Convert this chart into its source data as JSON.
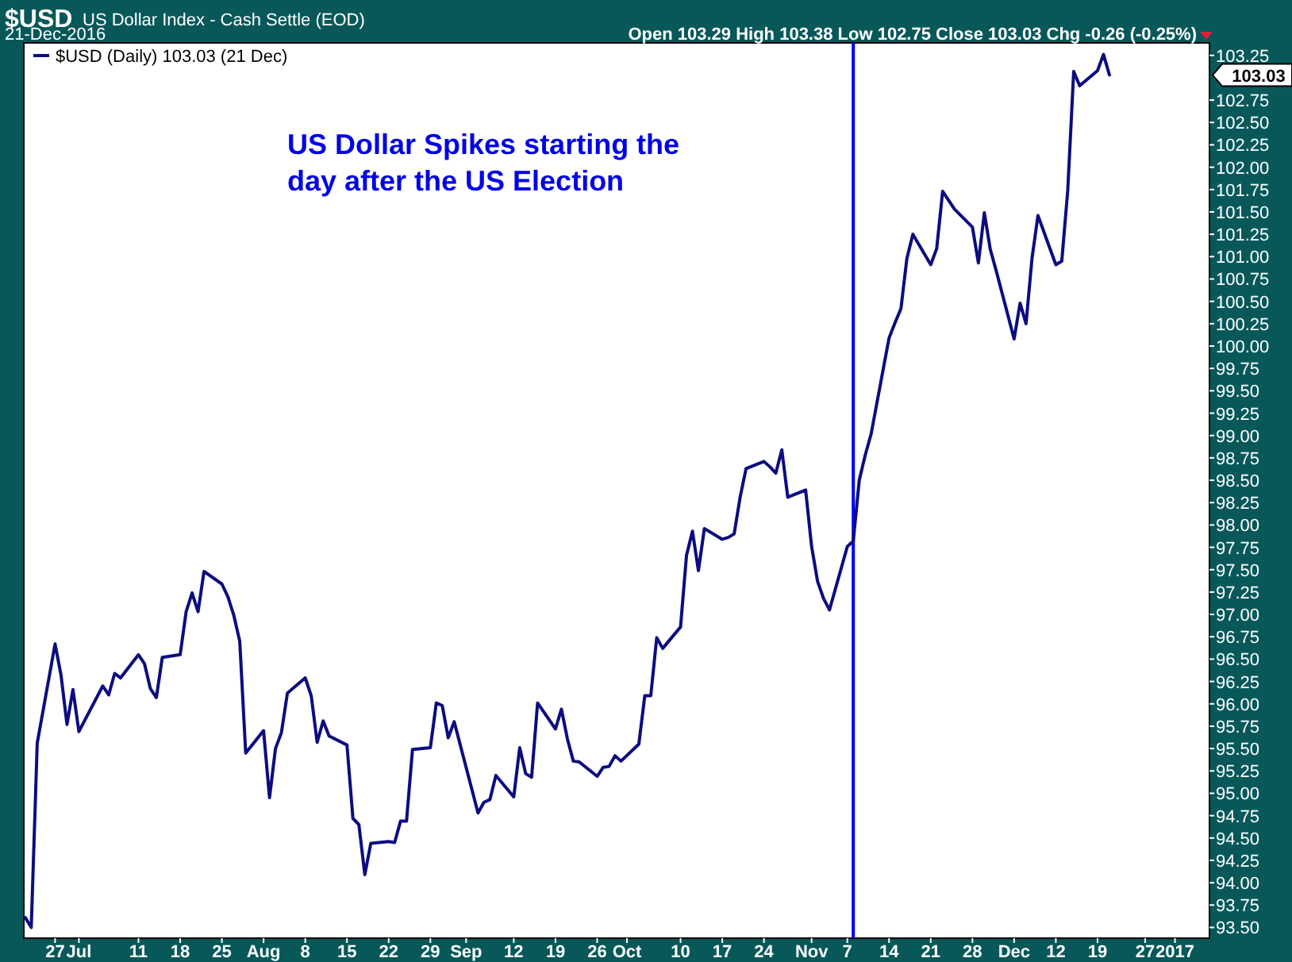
{
  "chart_data": {
    "type": "line",
    "title": "$USD",
    "subtitle": "US Dollar Index - Cash Settle (EOD)",
    "annotations": [
      "21-Dec-2016",
      "Open 103.29 High 103.38 Low 102.75 Close 103.03 Chg -0.26 (-0.25%)",
      "US Dollar Spikes starting the\nday after the US Election",
      "103.03"
    ],
    "x": [
      "2016-06-22",
      "2016-06-23",
      "2016-06-24",
      "2016-06-27",
      "2016-06-28",
      "2016-06-29",
      "2016-06-30",
      "2016-07-01",
      "2016-07-05",
      "2016-07-06",
      "2016-07-07",
      "2016-07-08",
      "2016-07-11",
      "2016-07-12",
      "2016-07-13",
      "2016-07-14",
      "2016-07-15",
      "2016-07-18",
      "2016-07-19",
      "2016-07-20",
      "2016-07-21",
      "2016-07-22",
      "2016-07-25",
      "2016-07-26",
      "2016-07-27",
      "2016-07-28",
      "2016-07-29",
      "2016-08-01",
      "2016-08-02",
      "2016-08-03",
      "2016-08-04",
      "2016-08-05",
      "2016-08-08",
      "2016-08-09",
      "2016-08-10",
      "2016-08-11",
      "2016-08-12",
      "2016-08-15",
      "2016-08-16",
      "2016-08-17",
      "2016-08-18",
      "2016-08-19",
      "2016-08-22",
      "2016-08-23",
      "2016-08-24",
      "2016-08-25",
      "2016-08-26",
      "2016-08-29",
      "2016-08-30",
      "2016-08-31",
      "2016-09-01",
      "2016-09-02",
      "2016-09-06",
      "2016-09-07",
      "2016-09-08",
      "2016-09-09",
      "2016-09-12",
      "2016-09-13",
      "2016-09-14",
      "2016-09-15",
      "2016-09-16",
      "2016-09-19",
      "2016-09-20",
      "2016-09-21",
      "2016-09-22",
      "2016-09-23",
      "2016-09-26",
      "2016-09-27",
      "2016-09-28",
      "2016-09-29",
      "2016-09-30",
      "2016-10-03",
      "2016-10-04",
      "2016-10-05",
      "2016-10-06",
      "2016-10-07",
      "2016-10-10",
      "2016-10-11",
      "2016-10-12",
      "2016-10-13",
      "2016-10-14",
      "2016-10-17",
      "2016-10-18",
      "2016-10-19",
      "2016-10-20",
      "2016-10-21",
      "2016-10-24",
      "2016-10-25",
      "2016-10-26",
      "2016-10-27",
      "2016-10-28",
      "2016-10-31",
      "2016-11-01",
      "2016-11-02",
      "2016-11-03",
      "2016-11-04",
      "2016-11-07",
      "2016-11-08",
      "2016-11-09",
      "2016-11-10",
      "2016-11-11",
      "2016-11-14",
      "2016-11-15",
      "2016-11-16",
      "2016-11-17",
      "2016-11-18",
      "2016-11-21",
      "2016-11-22",
      "2016-11-23",
      "2016-11-25",
      "2016-11-28",
      "2016-11-29",
      "2016-11-30",
      "2016-12-01",
      "2016-12-02",
      "2016-12-05",
      "2016-12-06",
      "2016-12-07",
      "2016-12-08",
      "2016-12-09",
      "2016-12-12",
      "2016-12-13",
      "2016-12-14",
      "2016-12-15",
      "2016-12-16",
      "2016-12-19",
      "2016-12-20",
      "2016-12-21"
    ],
    "series": [
      {
        "name": "$USD (Daily) 103.03 (21 Dec)",
        "color": "#0c0c80",
        "values": [
          93.61,
          93.5,
          95.56,
          96.67,
          96.32,
          95.77,
          96.16,
          95.69,
          96.2,
          96.1,
          96.34,
          96.29,
          96.55,
          96.45,
          96.17,
          96.07,
          96.52,
          96.55,
          97.03,
          97.24,
          97.03,
          97.48,
          97.34,
          97.2,
          96.99,
          96.7,
          95.45,
          95.7,
          94.95,
          95.5,
          95.68,
          96.12,
          96.29,
          96.09,
          95.57,
          95.81,
          95.64,
          95.54,
          94.72,
          94.65,
          94.09,
          94.44,
          94.46,
          94.45,
          94.69,
          94.69,
          95.49,
          95.51,
          96.01,
          95.98,
          95.62,
          95.8,
          94.78,
          94.9,
          94.93,
          95.2,
          94.96,
          95.51,
          95.22,
          95.18,
          96.01,
          95.72,
          95.94,
          95.61,
          95.36,
          95.35,
          95.19,
          95.29,
          95.3,
          95.42,
          95.36,
          95.55,
          96.09,
          96.09,
          96.74,
          96.62,
          96.86,
          97.66,
          97.93,
          97.49,
          97.96,
          97.84,
          97.86,
          97.9,
          98.31,
          98.63,
          98.71,
          98.65,
          98.58,
          98.84,
          98.31,
          98.39,
          97.76,
          97.37,
          97.18,
          97.05,
          97.76,
          97.82,
          98.5,
          98.78,
          99.02,
          100.09,
          100.26,
          100.42,
          100.98,
          101.25,
          100.91,
          101.09,
          101.73,
          101.53,
          101.33,
          100.93,
          101.49,
          101.08,
          100.84,
          100.08,
          100.48,
          100.25,
          100.98,
          101.46,
          100.91,
          100.95,
          101.74,
          103.07,
          102.91,
          103.08,
          103.26,
          103.03
        ]
      }
    ],
    "xlim": [
      "2016-06-21T18:00",
      "2017-01-06T19:00"
    ],
    "xticks": [
      {
        "value": "2016-06-27",
        "label": "27"
      },
      {
        "value": "2016-07-01",
        "label": "Jul"
      },
      {
        "value": "2016-07-11",
        "label": "11"
      },
      {
        "value": "2016-07-18",
        "label": "18"
      },
      {
        "value": "2016-07-25",
        "label": "25"
      },
      {
        "value": "2016-08-01",
        "label": "Aug"
      },
      {
        "value": "2016-08-08",
        "label": "8"
      },
      {
        "value": "2016-08-15",
        "label": "15"
      },
      {
        "value": "2016-08-22",
        "label": "22"
      },
      {
        "value": "2016-08-29",
        "label": "29"
      },
      {
        "value": "2016-09-04",
        "label": "Sep"
      },
      {
        "value": "2016-09-12",
        "label": "12"
      },
      {
        "value": "2016-09-19",
        "label": "19"
      },
      {
        "value": "2016-09-26",
        "label": "26"
      },
      {
        "value": "2016-10-01",
        "label": "Oct"
      },
      {
        "value": "2016-10-10",
        "label": "10"
      },
      {
        "value": "2016-10-17",
        "label": "17"
      },
      {
        "value": "2016-10-24",
        "label": "24"
      },
      {
        "value": "2016-11-01",
        "label": "Nov"
      },
      {
        "value": "2016-11-07",
        "label": "7"
      },
      {
        "value": "2016-11-14",
        "label": "14"
      },
      {
        "value": "2016-11-21",
        "label": "21"
      },
      {
        "value": "2016-11-28",
        "label": "28"
      },
      {
        "value": "2016-12-05",
        "label": "Dec"
      },
      {
        "value": "2016-12-12",
        "label": "12"
      },
      {
        "value": "2016-12-19",
        "label": "19"
      },
      {
        "value": "2016-12-27",
        "label": "27"
      },
      {
        "value": "2017-01-01",
        "label": "2017"
      }
    ],
    "ylim": [
      93.38,
      103.39
    ],
    "yticks": [
      {
        "value": 93.5,
        "label": "93.50"
      },
      {
        "value": 93.75,
        "label": "93.75"
      },
      {
        "value": 94,
        "label": "94.00"
      },
      {
        "value": 94.25,
        "label": "94.25"
      },
      {
        "value": 94.5,
        "label": "94.50"
      },
      {
        "value": 94.75,
        "label": "94.75"
      },
      {
        "value": 95,
        "label": "95.00"
      },
      {
        "value": 95.25,
        "label": "95.25"
      },
      {
        "value": 95.5,
        "label": "95.50"
      },
      {
        "value": 95.75,
        "label": "95.75"
      },
      {
        "value": 96,
        "label": "96.00"
      },
      {
        "value": 96.25,
        "label": "96.25"
      },
      {
        "value": 96.5,
        "label": "96.50"
      },
      {
        "value": 96.75,
        "label": "96.75"
      },
      {
        "value": 97,
        "label": "97.00"
      },
      {
        "value": 97.25,
        "label": "97.25"
      },
      {
        "value": 97.5,
        "label": "97.50"
      },
      {
        "value": 97.75,
        "label": "97.75"
      },
      {
        "value": 98,
        "label": "98.00"
      },
      {
        "value": 98.25,
        "label": "98.25"
      },
      {
        "value": 98.5,
        "label": "98.50"
      },
      {
        "value": 98.75,
        "label": "98.75"
      },
      {
        "value": 99,
        "label": "99.00"
      },
      {
        "value": 99.25,
        "label": "99.25"
      },
      {
        "value": 99.5,
        "label": "99.50"
      },
      {
        "value": 99.75,
        "label": "99.75"
      },
      {
        "value": 100,
        "label": "100.00"
      },
      {
        "value": 100.25,
        "label": "100.25"
      },
      {
        "value": 100.5,
        "label": "100.50"
      },
      {
        "value": 100.75,
        "label": "100.75"
      },
      {
        "value": 101,
        "label": "101.00"
      },
      {
        "value": 101.25,
        "label": "101.25"
      },
      {
        "value": 101.5,
        "label": "101.50"
      },
      {
        "value": 101.75,
        "label": "101.75"
      },
      {
        "value": 102,
        "label": "102.00"
      },
      {
        "value": 102.25,
        "label": "102.25"
      },
      {
        "value": 102.5,
        "label": "102.50"
      },
      {
        "value": 102.75,
        "label": "102.75"
      },
      {
        "value": 103.25,
        "label": "103.25"
      }
    ],
    "ref_lines": [
      {
        "axis": "x",
        "value": "2016-11-08",
        "color": "#0000ff"
      }
    ],
    "legend": "top left",
    "grid": false,
    "line_style": "solid",
    "marker": "none"
  }
}
